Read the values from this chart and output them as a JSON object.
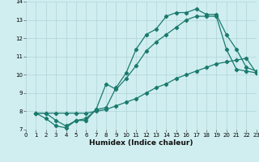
{
  "xlabel": "Humidex (Indice chaleur)",
  "xlim": [
    0,
    23
  ],
  "ylim": [
    7,
    14
  ],
  "xticks": [
    0,
    1,
    2,
    3,
    4,
    5,
    6,
    7,
    8,
    9,
    10,
    11,
    12,
    13,
    14,
    15,
    16,
    17,
    18,
    19,
    20,
    21,
    22,
    23
  ],
  "yticks": [
    7,
    8,
    9,
    10,
    11,
    12,
    13,
    14
  ],
  "bg_color": "#d0eef0",
  "line_color": "#1a7a6e",
  "grid_color": "#b0d4d8",
  "line1_x": [
    1,
    2,
    3,
    4,
    5,
    6,
    7,
    8,
    9,
    10,
    11,
    12,
    13,
    14,
    15,
    16,
    17,
    18,
    19,
    20,
    21,
    22,
    23
  ],
  "line1_y": [
    7.9,
    7.9,
    7.5,
    7.2,
    7.5,
    7.5,
    8.1,
    8.2,
    9.3,
    10.1,
    11.4,
    12.2,
    12.5,
    13.2,
    13.4,
    13.4,
    13.6,
    13.3,
    13.3,
    12.2,
    11.4,
    10.4,
    10.2
  ],
  "line2_x": [
    1,
    2,
    3,
    4,
    5,
    6,
    7,
    8,
    9,
    10,
    11,
    12,
    13,
    14,
    15,
    16,
    17,
    18,
    19,
    20,
    21,
    22,
    23
  ],
  "line2_y": [
    7.9,
    7.6,
    7.2,
    7.1,
    7.5,
    7.6,
    8.1,
    9.5,
    9.2,
    9.8,
    10.5,
    11.3,
    11.8,
    12.2,
    12.6,
    13.0,
    13.2,
    13.2,
    13.2,
    11.4,
    10.3,
    10.2,
    10.1
  ],
  "line3_x": [
    1,
    2,
    3,
    4,
    5,
    6,
    7,
    8,
    9,
    10,
    11,
    12,
    13,
    14,
    15,
    16,
    17,
    18,
    19,
    20,
    21,
    22,
    23
  ],
  "line3_y": [
    7.9,
    7.9,
    7.9,
    7.9,
    7.9,
    7.9,
    8.0,
    8.1,
    8.3,
    8.5,
    8.7,
    9.0,
    9.3,
    9.5,
    9.8,
    10.0,
    10.2,
    10.4,
    10.6,
    10.7,
    10.8,
    10.9,
    10.1
  ],
  "marker": "D",
  "markersize": 2.2,
  "linewidth": 0.9,
  "tick_fontsize": 5.0,
  "xlabel_fontsize": 6.5
}
